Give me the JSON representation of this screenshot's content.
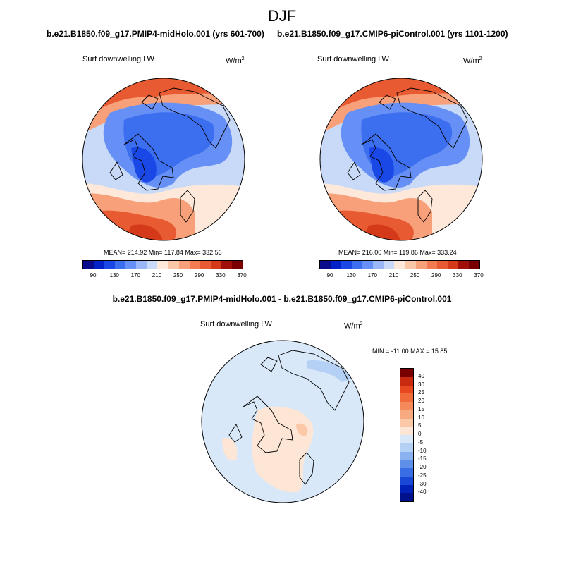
{
  "season": "DJF",
  "panels": [
    {
      "case_title": "b.e21.B1850.f09_g17.PMIP4-midHolo.001 (yrs 601-700)",
      "variable": "Surf downwelling LW",
      "units": "W/m",
      "units_exp": "2",
      "stats": "MEAN= 214.92  Min= 117.84  Max= 332.56"
    },
    {
      "case_title": "b.e21.B1850.f09_g17.CMIP6-piControl.001 (yrs 1101-1200)",
      "variable": "Surf downwelling LW",
      "units": "W/m",
      "units_exp": "2",
      "stats": "MEAN= 216.00  Min= 119.86  Max= 333.24"
    }
  ],
  "colorbar_top": {
    "colors": [
      "#0a0a8c",
      "#0022c8",
      "#1a48e6",
      "#3c6ef0",
      "#6690f5",
      "#9ab8f8",
      "#c8daf8",
      "#fde8d9",
      "#f9c6a8",
      "#f7a07a",
      "#f27b52",
      "#e85a32",
      "#d43a1a",
      "#a01008",
      "#7a0000"
    ],
    "labels": [
      "90",
      "130",
      "170",
      "210",
      "250",
      "290",
      "330",
      "370"
    ]
  },
  "diff": {
    "title": "b.e21.B1850.f09_g17.PMIP4-midHolo.001 - b.e21.B1850.f09_g17.CMIP6-piControl.001",
    "variable": "Surf downwelling LW",
    "units": "W/m",
    "units_exp": "2",
    "minmax": "MIN = -11.00 MAX =  15.85",
    "colorbar": {
      "colors": [
        "#7a0000",
        "#c82a10",
        "#e84820",
        "#f06a3a",
        "#f48a5a",
        "#f7aa80",
        "#fbc8a8",
        "#fde6d6",
        "#d8e8f8",
        "#b4d0f4",
        "#8ab2ee",
        "#5e90ea",
        "#3a6ee4",
        "#1a48d6",
        "#0022b8",
        "#00118c"
      ],
      "labels": [
        "40",
        "30",
        "25",
        "20",
        "15",
        "10",
        "5",
        "0",
        "-5",
        "-10",
        "-15",
        "-20",
        "-25",
        "-30",
        "-40"
      ]
    }
  }
}
